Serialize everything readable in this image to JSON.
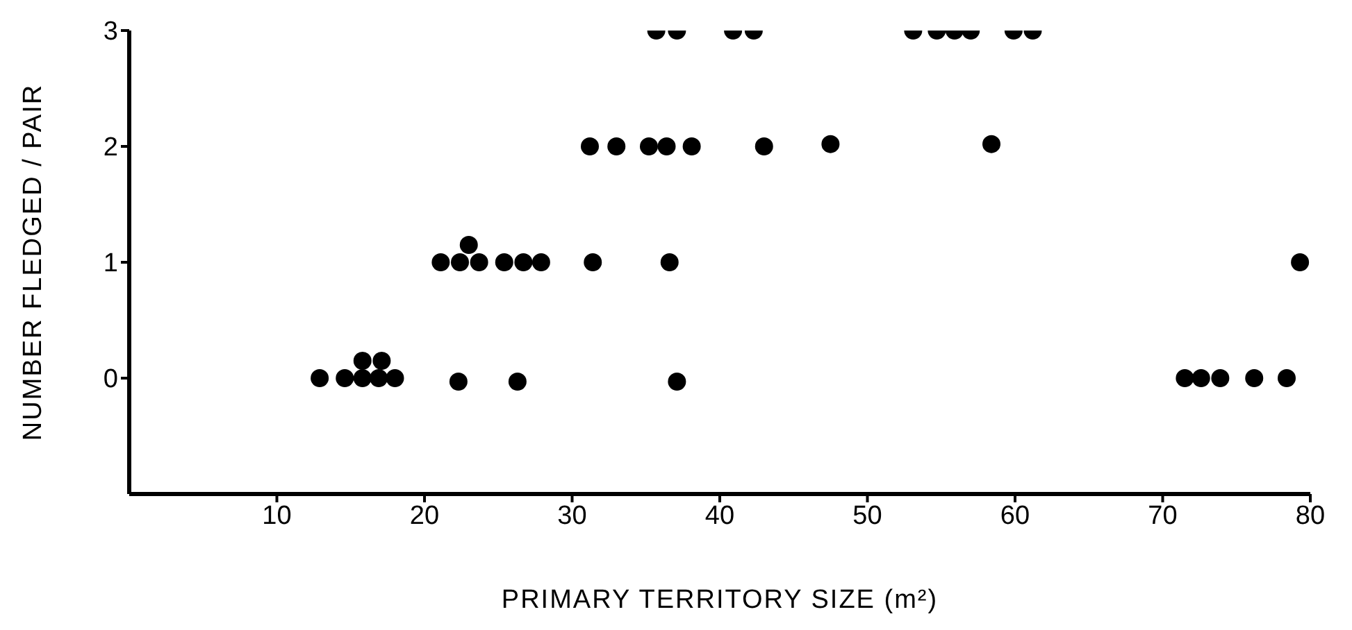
{
  "chart_data": {
    "type": "scatter",
    "xlabel": "PRIMARY TERRITORY SIZE (m²)",
    "ylabel": "NUMBER FLEDGED / PAIR",
    "xlim": [
      0,
      80
    ],
    "xticks": [
      10,
      20,
      30,
      40,
      50,
      60,
      70,
      80
    ],
    "ylim": [
      -1,
      3
    ],
    "yticks": [
      0,
      1,
      2,
      3
    ],
    "grid": false,
    "legend": false,
    "marker": "circle",
    "series": [
      {
        "color": "#000000",
        "x": [
          12.9,
          14.6,
          15.8,
          16.9,
          18.0,
          15.8,
          17.1,
          22.3,
          26.3,
          37.1,
          71.5,
          72.6,
          73.9,
          76.2,
          78.4,
          21.1,
          22.4,
          23.7,
          25.4,
          26.7,
          27.9,
          23.0,
          31.4,
          36.6,
          79.3,
          31.2,
          33.0,
          35.2,
          36.4,
          38.1,
          43.0,
          47.5,
          58.4,
          35.7,
          37.1,
          40.9,
          42.3,
          53.1,
          54.7,
          55.9,
          57.0,
          59.9,
          61.2
        ],
        "values": [
          0,
          0,
          0,
          0,
          0,
          0.15,
          0.15,
          -0.03,
          -0.03,
          -0.03,
          0,
          0,
          0,
          0,
          0,
          1,
          1,
          1,
          1,
          1,
          1,
          1.15,
          1,
          1,
          1,
          2,
          2,
          2,
          2,
          2,
          2,
          2.02,
          2.02,
          3,
          3,
          3,
          3,
          3,
          3,
          3,
          3,
          3,
          3
        ]
      }
    ]
  }
}
